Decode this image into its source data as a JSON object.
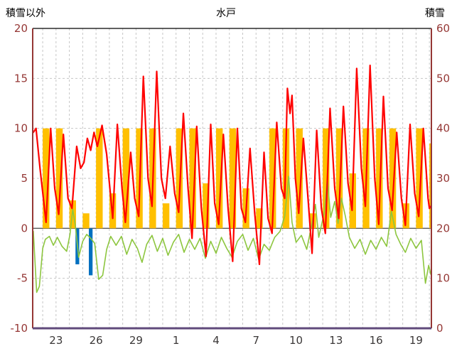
{
  "header": {
    "left_axis_title": "積雪以外",
    "chart_title": "水戸",
    "right_axis_title": "積雪"
  },
  "colors": {
    "temperature_line": "#FF0000",
    "green_line": "#8DC63F",
    "sunshine_bar": "#FFC000",
    "blue_bar": "#0070C0",
    "grid": "#C6C6C6",
    "zero_line": "#595959",
    "y_tick_label": "#953735",
    "x_tick_label": "#3B3838",
    "border_left_right": "#953735",
    "border_top": "#000000",
    "border_bottom": "#604A7B"
  },
  "chart_data": {
    "type": "line",
    "title": "水戸",
    "left_axis_label": "積雪以外",
    "right_axis_label": "積雪",
    "x_domain": [
      21.25,
      51.15
    ],
    "y_left": {
      "label": "積雪以外",
      "min": -10,
      "max": 20,
      "ticks": [
        20,
        15,
        10,
        5,
        0,
        -5,
        -10
      ]
    },
    "y_right": {
      "label": "積雪",
      "min": 0,
      "max": 60,
      "ticks": [
        60,
        50,
        40,
        30,
        20,
        10,
        0
      ]
    },
    "x_ticks": [
      {
        "x": 23,
        "label": "23"
      },
      {
        "x": 26,
        "label": "26"
      },
      {
        "x": 29,
        "label": "29"
      },
      {
        "x": 32,
        "label": "1"
      },
      {
        "x": 35,
        "label": "4"
      },
      {
        "x": 38,
        "label": "7"
      },
      {
        "x": 41,
        "label": "10"
      },
      {
        "x": 44,
        "label": "13"
      },
      {
        "x": 47,
        "label": "16"
      },
      {
        "x": 50,
        "label": "19"
      }
    ],
    "grid": {
      "vertical_day_start": 22,
      "vertical_day_end": 51,
      "horizontal_dashed": [
        15,
        10,
        5,
        -5
      ],
      "zero_line": 0,
      "legend": "none"
    },
    "series": [
      {
        "name": "sunshine-bars",
        "type": "bar",
        "color": "#FFC000",
        "bar_width_days": 0.5,
        "points": [
          [
            22,
            10
          ],
          [
            23,
            10
          ],
          [
            24,
            2.8
          ],
          [
            25,
            1.5
          ],
          [
            26,
            10
          ],
          [
            27,
            3.5
          ],
          [
            28,
            10
          ],
          [
            29,
            10
          ],
          [
            30,
            10
          ],
          [
            31,
            2.5
          ],
          [
            32,
            10
          ],
          [
            33,
            10
          ],
          [
            34,
            4.5
          ],
          [
            35,
            10
          ],
          [
            36,
            10
          ],
          [
            37,
            4
          ],
          [
            38,
            2
          ],
          [
            39,
            10
          ],
          [
            40,
            10
          ],
          [
            41,
            10
          ],
          [
            42,
            1.5
          ],
          [
            43,
            10
          ],
          [
            44,
            10
          ],
          [
            45,
            5.5
          ],
          [
            46,
            10
          ],
          [
            47,
            10
          ],
          [
            48,
            10
          ],
          [
            49,
            2.5
          ],
          [
            50,
            10
          ],
          [
            51,
            8.5
          ]
        ]
      },
      {
        "name": "blue-bars",
        "type": "bar",
        "color": "#0070C0",
        "bar_width_days": 0.28,
        "points": [
          [
            24.6,
            -3.6
          ],
          [
            25.6,
            -4.7
          ]
        ]
      },
      {
        "name": "green-line",
        "type": "line",
        "color": "#8DC63F",
        "stroke_width": 1.6,
        "points": [
          [
            21.3,
            -0.3
          ],
          [
            21.55,
            -6.4
          ],
          [
            21.75,
            -5.8
          ],
          [
            22.0,
            -2.0
          ],
          [
            22.2,
            -1.1
          ],
          [
            22.5,
            -0.8
          ],
          [
            22.8,
            -1.7
          ],
          [
            23.1,
            -0.9
          ],
          [
            23.45,
            -1.8
          ],
          [
            23.8,
            -2.3
          ],
          [
            24.05,
            -0.6
          ],
          [
            24.25,
            1.9
          ],
          [
            24.45,
            0.3
          ],
          [
            24.7,
            -2.9
          ],
          [
            25.0,
            -1.3
          ],
          [
            25.3,
            -0.6
          ],
          [
            25.6,
            -1.0
          ],
          [
            25.9,
            -1.5
          ],
          [
            26.2,
            -5.1
          ],
          [
            26.5,
            -4.7
          ],
          [
            26.8,
            -2.1
          ],
          [
            27.1,
            -0.8
          ],
          [
            27.5,
            -1.7
          ],
          [
            27.9,
            -0.8
          ],
          [
            28.3,
            -2.6
          ],
          [
            28.7,
            -1.1
          ],
          [
            29.1,
            -2.0
          ],
          [
            29.45,
            -3.4
          ],
          [
            29.8,
            -1.6
          ],
          [
            30.2,
            -0.7
          ],
          [
            30.6,
            -2.3
          ],
          [
            31.0,
            -1.0
          ],
          [
            31.4,
            -2.7
          ],
          [
            31.8,
            -1.4
          ],
          [
            32.2,
            -0.6
          ],
          [
            32.6,
            -2.4
          ],
          [
            33.0,
            -1.1
          ],
          [
            33.4,
            -2.1
          ],
          [
            33.8,
            -1.0
          ],
          [
            34.2,
            -3.0
          ],
          [
            34.6,
            -1.3
          ],
          [
            35.0,
            -2.5
          ],
          [
            35.4,
            -0.9
          ],
          [
            35.8,
            -2.0
          ],
          [
            36.2,
            -2.9
          ],
          [
            36.6,
            -1.3
          ],
          [
            37.0,
            -0.6
          ],
          [
            37.4,
            -2.2
          ],
          [
            37.8,
            -1.0
          ],
          [
            38.2,
            -3.1
          ],
          [
            38.6,
            -1.6
          ],
          [
            39.0,
            -2.2
          ],
          [
            39.4,
            -0.9
          ],
          [
            39.8,
            -0.3
          ],
          [
            40.15,
            1.2
          ],
          [
            40.45,
            5.2
          ],
          [
            40.7,
            0.6
          ],
          [
            41.0,
            -1.4
          ],
          [
            41.4,
            -0.7
          ],
          [
            41.8,
            -2.1
          ],
          [
            42.2,
            0.5
          ],
          [
            42.45,
            2.4
          ],
          [
            42.7,
            -0.9
          ],
          [
            43.1,
            1.5
          ],
          [
            43.35,
            4.9
          ],
          [
            43.6,
            1.1
          ],
          [
            43.9,
            2.7
          ],
          [
            44.15,
            0.5
          ],
          [
            44.4,
            3.0
          ],
          [
            44.7,
            1.2
          ],
          [
            45.0,
            -0.9
          ],
          [
            45.4,
            -2.0
          ],
          [
            45.8,
            -1.1
          ],
          [
            46.2,
            -2.6
          ],
          [
            46.6,
            -1.2
          ],
          [
            47.0,
            -2.1
          ],
          [
            47.4,
            -0.9
          ],
          [
            47.8,
            -1.8
          ],
          [
            48.15,
            1.7
          ],
          [
            48.5,
            -0.6
          ],
          [
            48.85,
            -1.6
          ],
          [
            49.2,
            -2.4
          ],
          [
            49.6,
            -1.0
          ],
          [
            50.0,
            -2.0
          ],
          [
            50.4,
            -1.2
          ],
          [
            50.7,
            -5.5
          ],
          [
            50.95,
            -3.7
          ],
          [
            51.1,
            -4.6
          ]
        ]
      },
      {
        "name": "temperature-line",
        "type": "line",
        "color": "#FF0000",
        "stroke_width": 2.2,
        "points": [
          [
            21.3,
            9.6
          ],
          [
            21.5,
            10.0
          ],
          [
            21.8,
            6.0
          ],
          [
            22.25,
            0.6
          ],
          [
            22.6,
            10.0
          ],
          [
            22.9,
            4.0
          ],
          [
            23.2,
            1.4
          ],
          [
            23.55,
            9.4
          ],
          [
            23.9,
            3.0
          ],
          [
            24.2,
            2.0
          ],
          [
            24.55,
            8.2
          ],
          [
            24.85,
            6.0
          ],
          [
            25.1,
            6.6
          ],
          [
            25.35,
            9.0
          ],
          [
            25.6,
            7.8
          ],
          [
            25.85,
            9.6
          ],
          [
            26.1,
            8.2
          ],
          [
            26.45,
            10.3
          ],
          [
            26.8,
            7.4
          ],
          [
            27.25,
            1.0
          ],
          [
            27.6,
            10.4
          ],
          [
            27.95,
            4.0
          ],
          [
            28.2,
            0.6
          ],
          [
            28.6,
            7.6
          ],
          [
            28.9,
            3.0
          ],
          [
            29.2,
            1.2
          ],
          [
            29.55,
            15.2
          ],
          [
            29.9,
            5.0
          ],
          [
            30.2,
            2.2
          ],
          [
            30.55,
            15.7
          ],
          [
            30.9,
            5.0
          ],
          [
            31.2,
            3.0
          ],
          [
            31.55,
            8.2
          ],
          [
            31.9,
            3.5
          ],
          [
            32.2,
            1.6
          ],
          [
            32.55,
            11.5
          ],
          [
            32.9,
            4.0
          ],
          [
            33.2,
            -1.0
          ],
          [
            33.55,
            10.2
          ],
          [
            33.9,
            2.0
          ],
          [
            34.25,
            -2.8
          ],
          [
            34.6,
            10.4
          ],
          [
            34.9,
            2.5
          ],
          [
            35.2,
            0.4
          ],
          [
            35.55,
            9.4
          ],
          [
            35.9,
            2.0
          ],
          [
            36.25,
            -3.3
          ],
          [
            36.6,
            10.0
          ],
          [
            36.9,
            2.0
          ],
          [
            37.2,
            0.6
          ],
          [
            37.55,
            8.0
          ],
          [
            37.9,
            1.5
          ],
          [
            38.25,
            -3.6
          ],
          [
            38.6,
            7.6
          ],
          [
            38.9,
            1.0
          ],
          [
            39.2,
            -0.5
          ],
          [
            39.55,
            10.6
          ],
          [
            39.9,
            4.0
          ],
          [
            40.15,
            3.0
          ],
          [
            40.35,
            14.0
          ],
          [
            40.55,
            11.5
          ],
          [
            40.7,
            13.3
          ],
          [
            40.95,
            5.0
          ],
          [
            41.2,
            1.5
          ],
          [
            41.55,
            9.0
          ],
          [
            41.9,
            3.0
          ],
          [
            42.2,
            -2.5
          ],
          [
            42.55,
            9.8
          ],
          [
            42.9,
            2.0
          ],
          [
            43.2,
            -0.5
          ],
          [
            43.55,
            12.0
          ],
          [
            43.9,
            4.0
          ],
          [
            44.2,
            1.0
          ],
          [
            44.55,
            12.2
          ],
          [
            44.9,
            4.5
          ],
          [
            45.2,
            1.8
          ],
          [
            45.55,
            16.0
          ],
          [
            45.9,
            6.0
          ],
          [
            46.2,
            2.2
          ],
          [
            46.55,
            16.3
          ],
          [
            46.9,
            5.0
          ],
          [
            47.2,
            0.4
          ],
          [
            47.55,
            13.2
          ],
          [
            47.9,
            4.0
          ],
          [
            48.2,
            1.8
          ],
          [
            48.55,
            9.6
          ],
          [
            48.9,
            3.0
          ],
          [
            49.2,
            0.3
          ],
          [
            49.55,
            10.4
          ],
          [
            49.9,
            3.5
          ],
          [
            50.2,
            1.2
          ],
          [
            50.55,
            10.0
          ],
          [
            50.9,
            3.0
          ],
          [
            51.0,
            2.0
          ],
          [
            51.1,
            2.2
          ]
        ]
      }
    ]
  }
}
